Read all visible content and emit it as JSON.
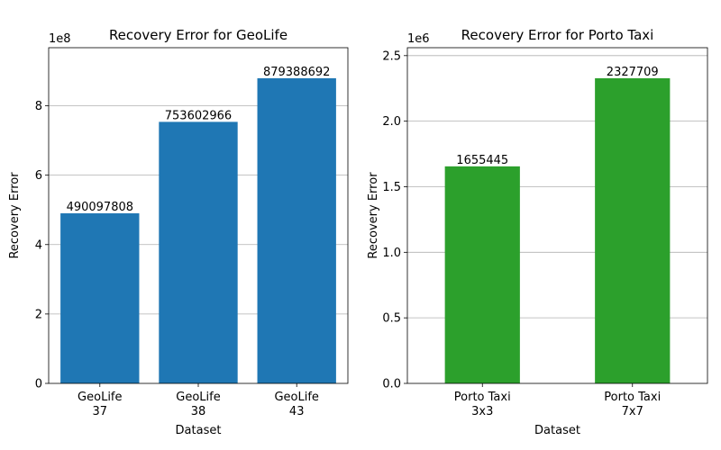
{
  "chart_data": [
    {
      "type": "bar",
      "title": "Recovery Error for GeoLife",
      "xlabel": "Dataset",
      "ylabel": "Recovery Error",
      "categories": [
        "GeoLife\n37",
        "GeoLife\n38",
        "GeoLife\n43"
      ],
      "values": [
        490097808,
        753602966,
        879388692
      ],
      "data_labels": [
        "490097808",
        "753602966",
        "879388692"
      ],
      "ylim": [
        0,
        967327561
      ],
      "yticks": [
        0,
        200000000,
        400000000,
        600000000,
        800000000
      ],
      "ytick_labels": [
        "0",
        "2",
        "4",
        "6",
        "8"
      ],
      "offset_text": "1e8",
      "color": "#1f77b4",
      "grid": "y"
    },
    {
      "type": "bar",
      "title": "Recovery Error for Porto Taxi",
      "xlabel": "Dataset",
      "ylabel": "Recovery Error",
      "categories": [
        "Porto Taxi\n3x3",
        "Porto Taxi\n7x7"
      ],
      "values": [
        1655445,
        2327709
      ],
      "data_labels": [
        "1655445",
        "2327709"
      ],
      "ylim": [
        0,
        2560480
      ],
      "yticks": [
        0,
        500000,
        1000000,
        1500000,
        2000000,
        2500000
      ],
      "ytick_labels": [
        "0.0",
        "0.5",
        "1.0",
        "1.5",
        "2.0",
        "2.5"
      ],
      "offset_text": "1e6",
      "color": "#2ca02c",
      "grid": "y"
    }
  ]
}
